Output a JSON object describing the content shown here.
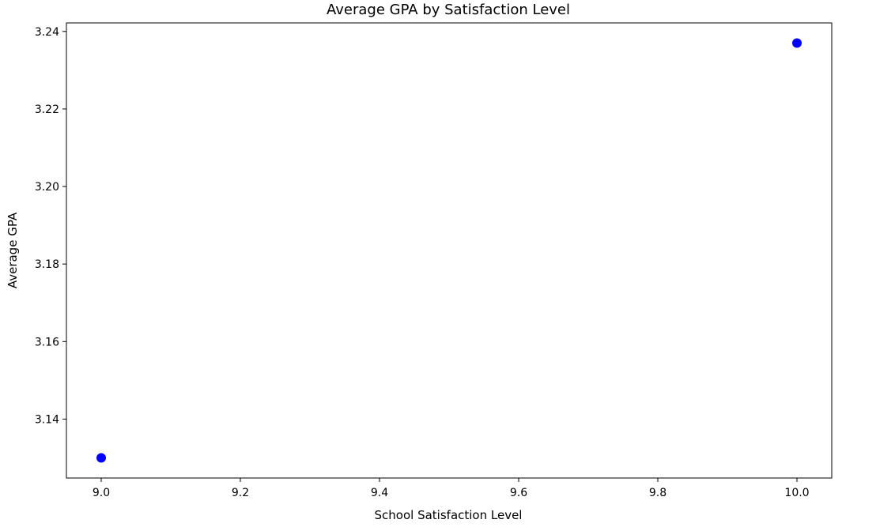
{
  "chart_data": {
    "type": "scatter",
    "title": "Average GPA by Satisfaction Level",
    "xlabel": "School Satisfaction Level",
    "ylabel": "Average GPA",
    "series": [
      {
        "color": "#0000ff",
        "points": [
          {
            "x": 9.0,
            "y": 3.13
          },
          {
            "x": 10.0,
            "y": 3.237
          }
        ]
      }
    ],
    "xlim": [
      8.95,
      10.05
    ],
    "ylim": [
      3.1248,
      3.2422
    ],
    "xticks": [
      9.0,
      9.2,
      9.4,
      9.6,
      9.8,
      10.0
    ],
    "xtick_labels": [
      "9.0",
      "9.2",
      "9.4",
      "9.6",
      "9.8",
      "10.0"
    ],
    "yticks": [
      3.14,
      3.16,
      3.18,
      3.2,
      3.22,
      3.24
    ],
    "ytick_labels": [
      "3.14",
      "3.16",
      "3.18",
      "3.20",
      "3.22",
      "3.24"
    ],
    "grid": false,
    "legend": false
  }
}
